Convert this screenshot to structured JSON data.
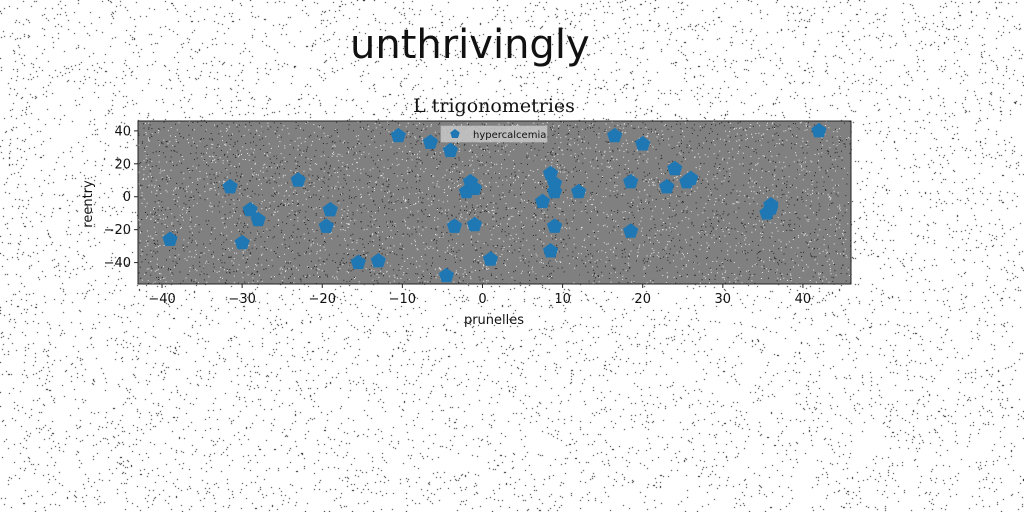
{
  "page": {
    "title": "unthrivingly"
  },
  "chart_data": {
    "type": "scatter",
    "title": "L trigonometries",
    "xlabel": "prunelles",
    "ylabel": "reentry",
    "xlim": [
      -43,
      46
    ],
    "ylim": [
      -53,
      46
    ],
    "xticks": [
      -40,
      -30,
      -20,
      -10,
      0,
      10,
      20,
      30,
      40
    ],
    "yticks": [
      -40,
      -20,
      0,
      20,
      40
    ],
    "legend_position": "top-center",
    "marker": "pentagon",
    "plot_background": "#808080",
    "series": [
      {
        "name": "hypercalcemia",
        "color": "#1f77b4",
        "points": [
          [
            -39,
            -26
          ],
          [
            -31.5,
            6
          ],
          [
            -30,
            -28
          ],
          [
            -29,
            -8
          ],
          [
            -28,
            -14
          ],
          [
            -23,
            10
          ],
          [
            -19.5,
            -18
          ],
          [
            -19,
            -8
          ],
          [
            -15.5,
            -40
          ],
          [
            -13,
            -39
          ],
          [
            -10.5,
            37
          ],
          [
            -6.5,
            33
          ],
          [
            -4.5,
            -48
          ],
          [
            -4,
            28
          ],
          [
            -3.5,
            -18
          ],
          [
            -2,
            3
          ],
          [
            -1.5,
            9
          ],
          [
            -1,
            -17
          ],
          [
            -1,
            5
          ],
          [
            1,
            -38
          ],
          [
            7.5,
            -3
          ],
          [
            8.5,
            14
          ],
          [
            8.5,
            -33
          ],
          [
            9,
            -18
          ],
          [
            9,
            8
          ],
          [
            9,
            3
          ],
          [
            12,
            3
          ],
          [
            16.5,
            37
          ],
          [
            18.5,
            9
          ],
          [
            18.5,
            -21
          ],
          [
            20,
            32
          ],
          [
            23,
            6
          ],
          [
            24,
            17
          ],
          [
            25.5,
            9
          ],
          [
            26,
            11
          ],
          [
            35.5,
            -10
          ],
          [
            36,
            -7
          ],
          [
            36,
            -5
          ],
          [
            42,
            40
          ]
        ]
      }
    ]
  }
}
